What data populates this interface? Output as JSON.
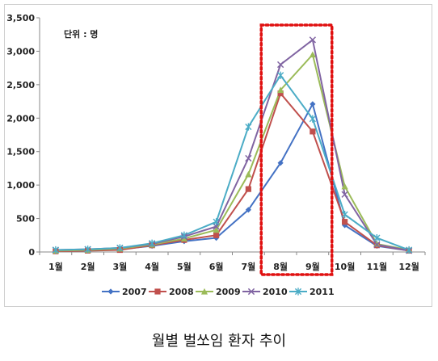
{
  "caption": "월별 벌쏘임 환자 추이",
  "chart_data": {
    "type": "line",
    "unit_label": "단위 : 명",
    "categories": [
      "1월",
      "2월",
      "3월",
      "4월",
      "5월",
      "6월",
      "7월",
      "8월",
      "9월",
      "10월",
      "11월",
      "12월"
    ],
    "ylim": [
      0,
      3500
    ],
    "yticks": [
      "0",
      "500",
      "1,000",
      "1,500",
      "2,000",
      "2,500",
      "3,000",
      "3,500"
    ],
    "grid": false,
    "legend_position": "bottom",
    "highlight": {
      "from": "8월",
      "to": "9월",
      "style": "red dotted box"
    },
    "series": [
      {
        "name": "2007",
        "color": "#4472C4",
        "marker": "diamond",
        "values": [
          20,
          30,
          40,
          90,
          160,
          210,
          630,
          1330,
          2210,
          400,
          90,
          20
        ]
      },
      {
        "name": "2008",
        "color": "#C0504D",
        "marker": "square",
        "values": [
          10,
          20,
          30,
          100,
          180,
          250,
          940,
          2370,
          1800,
          450,
          100,
          20
        ]
      },
      {
        "name": "2009",
        "color": "#9BBB59",
        "marker": "triangle",
        "values": [
          20,
          30,
          50,
          110,
          200,
          330,
          1160,
          2420,
          2950,
          980,
          120,
          30
        ]
      },
      {
        "name": "2010",
        "color": "#8064A2",
        "marker": "x",
        "values": [
          30,
          40,
          60,
          120,
          230,
          380,
          1400,
          2800,
          3170,
          860,
          110,
          20
        ]
      },
      {
        "name": "2011",
        "color": "#4BACC6",
        "marker": "star",
        "values": [
          30,
          40,
          60,
          130,
          250,
          450,
          1870,
          2640,
          1990,
          560,
          210,
          30
        ]
      }
    ]
  }
}
